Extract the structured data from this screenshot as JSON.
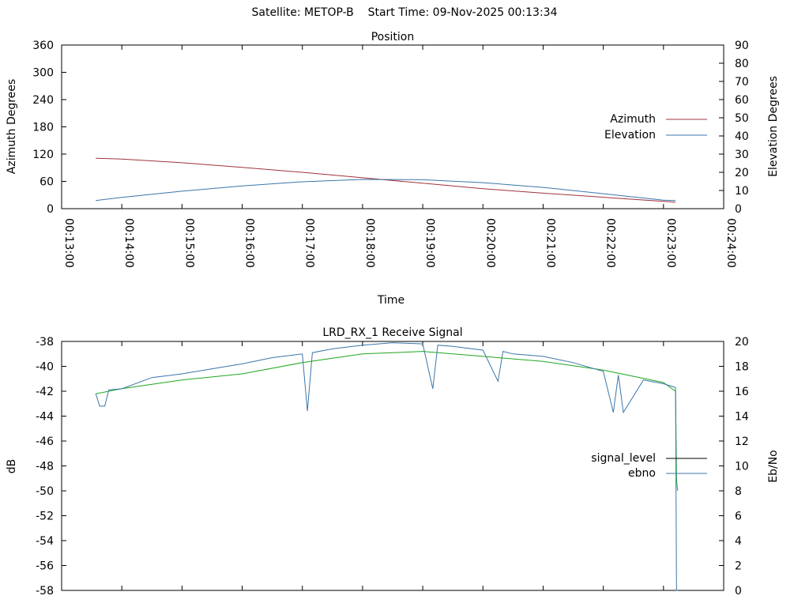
{
  "header": {
    "satellite_label": "Satellite: METOP-B",
    "start_label": "Start Time: 09-Nov-2025 00:13:34"
  },
  "colors": {
    "azimuth": "#a0343a",
    "elevation": "#3c76a8",
    "signal_level": "#1fa61f",
    "ebno": "#3c76a8",
    "legend_signal_level": "#000000"
  },
  "chart_data": [
    {
      "type": "line",
      "title": "Position",
      "xlabel": "Time",
      "ylabel": "Azimuth Degrees",
      "y2label": "Elevation Degrees",
      "xlim": [
        "00:13:00",
        "00:24:00"
      ],
      "ylim": [
        0,
        360
      ],
      "y2lim": [
        0,
        90
      ],
      "x_ticks": [
        "00:13:00",
        "00:14:00",
        "00:15:00",
        "00:16:00",
        "00:17:00",
        "00:18:00",
        "00:19:00",
        "00:20:00",
        "00:21:00",
        "00:22:00",
        "00:23:00",
        "00:24:00"
      ],
      "y_ticks": [
        0,
        60,
        120,
        180,
        240,
        300,
        360
      ],
      "y2_ticks": [
        0,
        10,
        20,
        30,
        40,
        50,
        60,
        70,
        80,
        90
      ],
      "legend_position": "right",
      "series": [
        {
          "name": "Azimuth",
          "axis": "left",
          "x": [
            "00:13:34",
            "00:14:00",
            "00:15:00",
            "00:16:00",
            "00:17:00",
            "00:18:00",
            "00:19:00",
            "00:20:00",
            "00:21:00",
            "00:22:00",
            "00:23:00",
            "00:23:12"
          ],
          "y": [
            111,
            109,
            101,
            91,
            80,
            68,
            56,
            44,
            34,
            25,
            16,
            14
          ]
        },
        {
          "name": "Elevation",
          "axis": "right",
          "x": [
            "00:13:34",
            "00:14:00",
            "00:15:00",
            "00:16:00",
            "00:17:00",
            "00:18:00",
            "00:19:00",
            "00:20:00",
            "00:21:00",
            "00:22:00",
            "00:23:00",
            "00:23:12"
          ],
          "y": [
            4.5,
            6.2,
            9.6,
            12.5,
            14.8,
            16.1,
            15.9,
            14.3,
            11.7,
            8.2,
            4.7,
            4.5
          ]
        }
      ]
    },
    {
      "type": "line",
      "title": "LRD_RX_1 Receive Signal",
      "xlabel": "",
      "ylabel": "dB",
      "y2label": "Eb/No",
      "xlim": [
        "00:13:00",
        "00:24:00"
      ],
      "ylim": [
        -58,
        -38
      ],
      "y2lim": [
        0,
        20
      ],
      "y_ticks": [
        -58,
        -56,
        -54,
        -52,
        -50,
        -48,
        -46,
        -44,
        -42,
        -40,
        -38
      ],
      "y2_ticks": [
        0,
        2,
        4,
        6,
        8,
        10,
        12,
        14,
        16,
        18,
        20
      ],
      "legend_position": "right",
      "series": [
        {
          "name": "signal_level",
          "axis": "left",
          "x": [
            "00:13:34",
            "00:14:00",
            "00:15:00",
            "00:16:00",
            "00:17:00",
            "00:18:00",
            "00:19:00",
            "00:20:00",
            "00:21:00",
            "00:22:00",
            "00:23:00",
            "00:23:12",
            "00:23:13",
            "00:23:14"
          ],
          "y": [
            -42.2,
            -41.8,
            -41.1,
            -40.6,
            -39.7,
            -39.0,
            -38.8,
            -39.2,
            -39.6,
            -40.3,
            -41.3,
            -42.0,
            -49.0,
            -50.0
          ]
        },
        {
          "name": "ebno",
          "axis": "right",
          "x": [
            "00:13:34",
            "00:13:38",
            "00:13:43",
            "00:13:47",
            "00:14:00",
            "00:14:30",
            "00:15:00",
            "00:15:30",
            "00:16:00",
            "00:16:30",
            "00:17:00",
            "00:17:05",
            "00:17:10",
            "00:17:30",
            "00:18:00",
            "00:18:30",
            "00:19:00",
            "00:19:10",
            "00:19:15",
            "00:19:30",
            "00:20:00",
            "00:20:15",
            "00:20:20",
            "00:20:30",
            "00:21:00",
            "00:21:30",
            "00:22:00",
            "00:22:10",
            "00:22:15",
            "00:22:20",
            "00:22:40",
            "00:23:00",
            "00:23:12",
            "00:23:13",
            "00:23:14"
          ],
          "y": [
            15.8,
            14.8,
            14.8,
            16.1,
            16.2,
            17.1,
            17.4,
            17.8,
            18.2,
            18.7,
            19.0,
            14.4,
            19.1,
            19.4,
            19.7,
            19.9,
            19.8,
            16.2,
            19.7,
            19.6,
            19.3,
            16.8,
            19.2,
            19.0,
            18.8,
            18.3,
            17.6,
            14.3,
            17.3,
            14.3,
            16.9,
            16.6,
            16.3,
            0,
            0
          ]
        }
      ]
    }
  ]
}
